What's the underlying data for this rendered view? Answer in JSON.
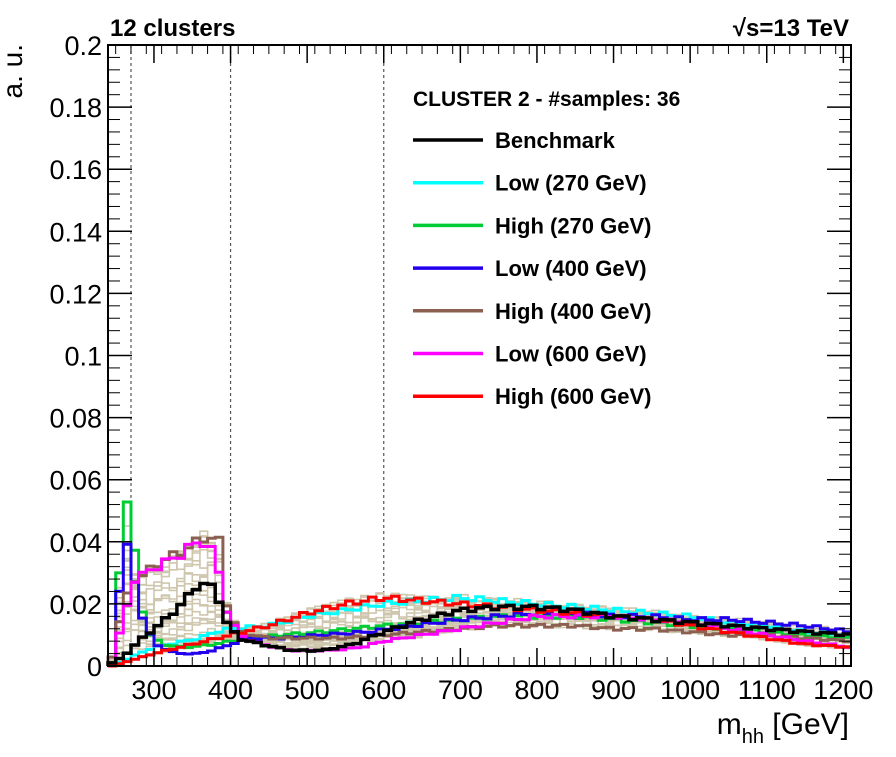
{
  "chart_data": {
    "type": "line",
    "title_left": "12 clusters",
    "title_right": "√s=13 TeV",
    "xlabel": "m",
    "xlabel_sub": "hh",
    "xlabel_unit": " [GeV]",
    "ylabel": "a. u.",
    "xlim": [
      240,
      1210
    ],
    "ylim": [
      0,
      0.2
    ],
    "x_ticks": [
      300,
      400,
      500,
      600,
      700,
      800,
      900,
      1000,
      1100,
      1200
    ],
    "x_tick_labels": [
      "300",
      "400",
      "500",
      "600",
      "700",
      "800",
      "900",
      "1000",
      "1100",
      "1200"
    ],
    "y_ticks": [
      0,
      0.02,
      0.04,
      0.06,
      0.08,
      0.1,
      0.12,
      0.14,
      0.16,
      0.18,
      0.2
    ],
    "y_tick_labels": [
      "0",
      "0.02",
      "0.04",
      "0.06",
      "0.08",
      "0.1",
      "0.12",
      "0.14",
      "0.16",
      "0.18",
      "0.2"
    ],
    "reference_lines_x": [
      270,
      400,
      600
    ],
    "legend_title": "CLUSTER 2 - #samples: 36",
    "legend_position": "top-right",
    "bin_width": 10,
    "series": [
      {
        "name": "Benchmark",
        "color": "#000000",
        "knots": [
          [
            245,
            0.001
          ],
          [
            260,
            0.003
          ],
          [
            280,
            0.008
          ],
          [
            300,
            0.012
          ],
          [
            320,
            0.016
          ],
          [
            340,
            0.021
          ],
          [
            360,
            0.027
          ],
          [
            380,
            0.025
          ],
          [
            395,
            0.014
          ],
          [
            410,
            0.009
          ],
          [
            440,
            0.007
          ],
          [
            480,
            0.005
          ],
          [
            520,
            0.005
          ],
          [
            560,
            0.007
          ],
          [
            600,
            0.011
          ],
          [
            650,
            0.015
          ],
          [
            700,
            0.018
          ],
          [
            750,
            0.019
          ],
          [
            800,
            0.019
          ],
          [
            850,
            0.018
          ],
          [
            900,
            0.016
          ],
          [
            950,
            0.015
          ],
          [
            1000,
            0.014
          ],
          [
            1050,
            0.013
          ],
          [
            1100,
            0.012
          ],
          [
            1150,
            0.011
          ],
          [
            1210,
            0.01
          ]
        ]
      },
      {
        "name": "Low (270 GeV)",
        "color": "#00ffff",
        "knots": [
          [
            245,
            0.0
          ],
          [
            280,
            0.004
          ],
          [
            300,
            0.006
          ],
          [
            320,
            0.007
          ],
          [
            340,
            0.008
          ],
          [
            360,
            0.009
          ],
          [
            380,
            0.011
          ],
          [
            400,
            0.012
          ],
          [
            450,
            0.013
          ],
          [
            500,
            0.016
          ],
          [
            550,
            0.018
          ],
          [
            600,
            0.02
          ],
          [
            650,
            0.021
          ],
          [
            700,
            0.022
          ],
          [
            750,
            0.021
          ],
          [
            800,
            0.02
          ],
          [
            850,
            0.019
          ],
          [
            900,
            0.018
          ],
          [
            950,
            0.017
          ],
          [
            1000,
            0.016
          ],
          [
            1050,
            0.014
          ],
          [
            1100,
            0.013
          ],
          [
            1150,
            0.011
          ],
          [
            1210,
            0.01
          ]
        ]
      },
      {
        "name": "High (270 GeV)",
        "color": "#00cc33",
        "knots": [
          [
            245,
            0.001
          ],
          [
            255,
            0.031
          ],
          [
            265,
            0.053
          ],
          [
            275,
            0.036
          ],
          [
            285,
            0.018
          ],
          [
            295,
            0.01
          ],
          [
            310,
            0.007
          ],
          [
            340,
            0.006
          ],
          [
            380,
            0.007
          ],
          [
            420,
            0.009
          ],
          [
            470,
            0.01
          ],
          [
            520,
            0.011
          ],
          [
            560,
            0.012
          ],
          [
            600,
            0.013
          ],
          [
            650,
            0.014
          ],
          [
            700,
            0.015
          ],
          [
            750,
            0.016
          ],
          [
            800,
            0.016
          ],
          [
            850,
            0.016
          ],
          [
            900,
            0.015
          ],
          [
            950,
            0.014
          ],
          [
            1000,
            0.013
          ],
          [
            1050,
            0.012
          ],
          [
            1100,
            0.011
          ],
          [
            1150,
            0.01
          ],
          [
            1210,
            0.009
          ]
        ]
      },
      {
        "name": "Low (400 GeV)",
        "color": "#2200ee",
        "knots": [
          [
            245,
            0.001
          ],
          [
            255,
            0.025
          ],
          [
            265,
            0.038
          ],
          [
            275,
            0.027
          ],
          [
            285,
            0.016
          ],
          [
            300,
            0.007
          ],
          [
            330,
            0.004
          ],
          [
            360,
            0.004
          ],
          [
            390,
            0.006
          ],
          [
            420,
            0.009
          ],
          [
            470,
            0.009
          ],
          [
            520,
            0.01
          ],
          [
            580,
            0.011
          ],
          [
            640,
            0.013
          ],
          [
            700,
            0.015
          ],
          [
            750,
            0.016
          ],
          [
            800,
            0.017
          ],
          [
            850,
            0.017
          ],
          [
            900,
            0.016
          ],
          [
            950,
            0.016
          ],
          [
            1000,
            0.015
          ],
          [
            1050,
            0.015
          ],
          [
            1100,
            0.014
          ],
          [
            1150,
            0.013
          ],
          [
            1210,
            0.011
          ]
        ]
      },
      {
        "name": "High (400 GeV)",
        "color": "#8b6050",
        "knots": [
          [
            245,
            0.003
          ],
          [
            260,
            0.02
          ],
          [
            275,
            0.028
          ],
          [
            290,
            0.03
          ],
          [
            310,
            0.034
          ],
          [
            330,
            0.036
          ],
          [
            350,
            0.039
          ],
          [
            370,
            0.042
          ],
          [
            385,
            0.04
          ],
          [
            395,
            0.02
          ],
          [
            410,
            0.011
          ],
          [
            450,
            0.009
          ],
          [
            500,
            0.009
          ],
          [
            550,
            0.009
          ],
          [
            600,
            0.01
          ],
          [
            650,
            0.011
          ],
          [
            700,
            0.012
          ],
          [
            750,
            0.013
          ],
          [
            800,
            0.013
          ],
          [
            850,
            0.013
          ],
          [
            900,
            0.012
          ],
          [
            950,
            0.012
          ],
          [
            1000,
            0.011
          ],
          [
            1050,
            0.01
          ],
          [
            1100,
            0.01
          ],
          [
            1150,
            0.009
          ],
          [
            1210,
            0.008
          ]
        ]
      },
      {
        "name": "Low (600 GeV)",
        "color": "#ff00ff",
        "knots": [
          [
            245,
            0.001
          ],
          [
            260,
            0.015
          ],
          [
            275,
            0.028
          ],
          [
            290,
            0.03
          ],
          [
            310,
            0.033
          ],
          [
            330,
            0.035
          ],
          [
            350,
            0.039
          ],
          [
            365,
            0.04
          ],
          [
            380,
            0.036
          ],
          [
            395,
            0.018
          ],
          [
            410,
            0.01
          ],
          [
            440,
            0.007
          ],
          [
            480,
            0.005
          ],
          [
            530,
            0.005
          ],
          [
            570,
            0.006
          ],
          [
            600,
            0.008
          ],
          [
            650,
            0.01
          ],
          [
            700,
            0.012
          ],
          [
            750,
            0.014
          ],
          [
            800,
            0.016
          ],
          [
            850,
            0.016
          ],
          [
            900,
            0.016
          ],
          [
            950,
            0.015
          ],
          [
            1000,
            0.014
          ],
          [
            1050,
            0.012
          ],
          [
            1100,
            0.01
          ],
          [
            1150,
            0.008
          ],
          [
            1210,
            0.006
          ]
        ]
      },
      {
        "name": "High (600 GeV)",
        "color": "#ff0000",
        "knots": [
          [
            245,
            0.0
          ],
          [
            300,
            0.004
          ],
          [
            350,
            0.007
          ],
          [
            400,
            0.01
          ],
          [
            450,
            0.013
          ],
          [
            500,
            0.017
          ],
          [
            550,
            0.02
          ],
          [
            600,
            0.022
          ],
          [
            650,
            0.021
          ],
          [
            700,
            0.02
          ],
          [
            750,
            0.019
          ],
          [
            800,
            0.018
          ],
          [
            850,
            0.017
          ],
          [
            900,
            0.016
          ],
          [
            950,
            0.015
          ],
          [
            1000,
            0.013
          ],
          [
            1050,
            0.011
          ],
          [
            1100,
            0.009
          ],
          [
            1150,
            0.007
          ],
          [
            1210,
            0.006
          ]
        ]
      }
    ],
    "background_series_count": 29,
    "background_color": "#cfc6ae"
  }
}
